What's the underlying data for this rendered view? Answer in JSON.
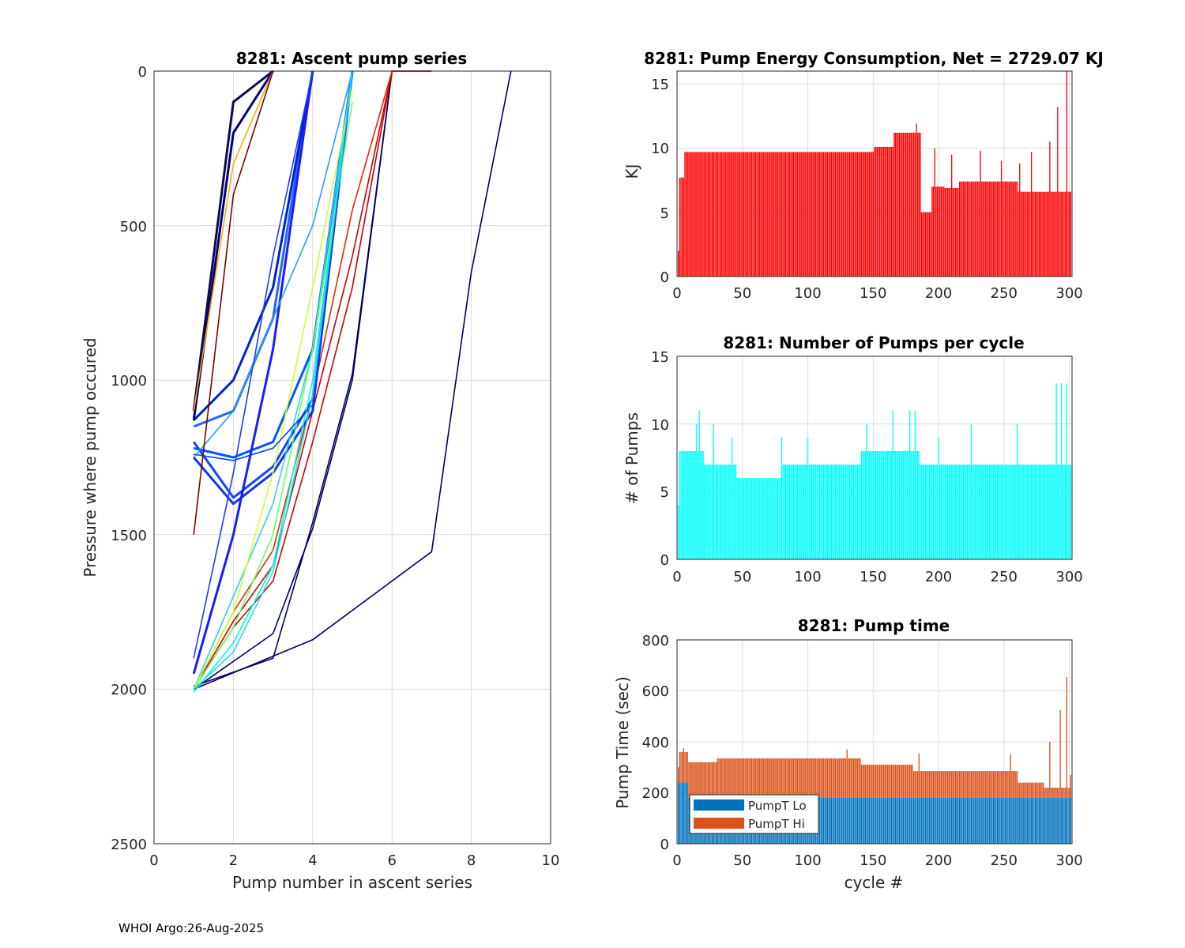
{
  "footer": "WHOI Argo:26-Aug-2025",
  "colors": {
    "energy_bar": "#ff0000",
    "pumps_bar": "#00ffff",
    "pumpt_lo": "#0072bd",
    "pumpt_hi": "#d95319",
    "grid": "#dcdcdc",
    "axis": "#262626"
  },
  "chart_data": [
    {
      "type": "line",
      "title": "8281: Ascent pump series",
      "xlabel": "Pump number in ascent series",
      "ylabel": "Pressure where pump occured",
      "xlim": [
        0,
        10
      ],
      "ylim": [
        2500,
        0
      ],
      "xticks": [
        "0",
        "2",
        "4",
        "6",
        "8",
        "10"
      ],
      "yticks": [
        "0",
        "500",
        "1000",
        "1500",
        "2000",
        "2500"
      ],
      "grid": true,
      "note": "~300 per-cycle ascent series colored by cycle number (jet colormap); representative series below",
      "series": [
        {
          "name": "profile-a",
          "color": "#000066",
          "x": [
            1,
            3,
            4,
            5,
            6
          ],
          "y": [
            2000,
            1820,
            1480,
            1000,
            0
          ]
        },
        {
          "name": "profile-b",
          "color": "#000066",
          "x": [
            1,
            4,
            7,
            8,
            9
          ],
          "y": [
            2000,
            1840,
            1555,
            650,
            0
          ]
        },
        {
          "name": "profile-c",
          "color": "#000066",
          "x": [
            1,
            3,
            4,
            5,
            6
          ],
          "y": [
            1990,
            1900,
            1460,
            980,
            0
          ]
        },
        {
          "name": "profile-d",
          "color": "#cc0000",
          "x": [
            1,
            2,
            3,
            4,
            5,
            6,
            7
          ],
          "y": [
            2000,
            1800,
            1650,
            1200,
            700,
            0,
            0
          ]
        },
        {
          "name": "profile-e",
          "color": "#cc0000",
          "x": [
            1,
            2,
            3,
            4,
            5,
            6,
            7
          ],
          "y": [
            2000,
            1780,
            1600,
            1100,
            600,
            0,
            0
          ]
        },
        {
          "name": "profile-f",
          "color": "#ee2200",
          "x": [
            1,
            2,
            3,
            4,
            5,
            6
          ],
          "y": [
            2000,
            1750,
            1550,
            1050,
            450,
            0
          ]
        },
        {
          "name": "profile-g",
          "color": "#1133ee",
          "x": [
            1,
            2,
            3,
            4,
            5
          ],
          "y": [
            1250,
            1400,
            1300,
            1100,
            0
          ]
        },
        {
          "name": "profile-h",
          "color": "#1144ff",
          "x": [
            1,
            2,
            3,
            4,
            5
          ],
          "y": [
            1200,
            1380,
            1280,
            1060,
            0
          ]
        },
        {
          "name": "profile-i",
          "color": "#0055ff",
          "x": [
            1,
            2,
            3,
            4,
            5
          ],
          "y": [
            1220,
            1250,
            1200,
            900,
            0
          ]
        },
        {
          "name": "profile-j",
          "color": "#2266ff",
          "x": [
            1,
            2,
            3,
            4
          ],
          "y": [
            1150,
            1100,
            800,
            0
          ]
        },
        {
          "name": "profile-k",
          "color": "#0022cc",
          "x": [
            1,
            2,
            3,
            4
          ],
          "y": [
            1130,
            1000,
            700,
            0
          ]
        },
        {
          "name": "profile-l",
          "color": "#1a1aff",
          "x": [
            1,
            2,
            3,
            4
          ],
          "y": [
            1950,
            1500,
            900,
            0
          ]
        },
        {
          "name": "profile-m",
          "color": "#000080",
          "x": [
            1,
            2,
            3
          ],
          "y": [
            1130,
            200,
            0
          ]
        },
        {
          "name": "profile-n",
          "color": "#0a0a50",
          "x": [
            1,
            2,
            3
          ],
          "y": [
            1100,
            100,
            0
          ]
        },
        {
          "name": "profile-o",
          "color": "#2a9df4",
          "x": [
            1,
            2,
            3,
            4,
            5
          ],
          "y": [
            1250,
            1100,
            800,
            500,
            0
          ]
        },
        {
          "name": "profile-p",
          "color": "#33ccff",
          "x": [
            1,
            2,
            3,
            4,
            5
          ],
          "y": [
            2000,
            1700,
            1400,
            900,
            0
          ]
        },
        {
          "name": "profile-q",
          "color": "#00ffcc",
          "x": [
            1,
            2,
            3,
            4,
            5
          ],
          "y": [
            2010,
            1850,
            1600,
            1000,
            0
          ]
        },
        {
          "name": "profile-r",
          "color": "#66ff66",
          "x": [
            1,
            2,
            3,
            4,
            5
          ],
          "y": [
            2000,
            1800,
            1500,
            900,
            100
          ]
        },
        {
          "name": "profile-s",
          "color": "#ccff33",
          "x": [
            1,
            2,
            3,
            4,
            5
          ],
          "y": [
            2000,
            1750,
            1300,
            700,
            50
          ]
        },
        {
          "name": "profile-t",
          "color": "#ffaa00",
          "x": [
            1,
            2,
            3
          ],
          "y": [
            1100,
            300,
            0
          ]
        },
        {
          "name": "profile-u",
          "color": "#800000",
          "x": [
            1,
            2,
            3
          ],
          "y": [
            1500,
            400,
            0
          ]
        },
        {
          "name": "profile-v",
          "color": "#1a3cff",
          "x": [
            1,
            2,
            3,
            4
          ],
          "y": [
            1900,
            1300,
            600,
            0
          ]
        },
        {
          "name": "profile-w",
          "color": "#0040ff",
          "x": [
            1,
            2,
            3,
            4,
            5
          ],
          "y": [
            1240,
            1260,
            1220,
            1080,
            0
          ]
        },
        {
          "name": "profile-x",
          "color": "#22ddee",
          "x": [
            1,
            2,
            3,
            4,
            5
          ],
          "y": [
            2000,
            1880,
            1620,
            1050,
            0
          ]
        }
      ]
    },
    {
      "type": "bar",
      "title": "8281: Pump Energy Consumption,  Net = 2729.07 KJ",
      "xlabel": "",
      "ylabel": "KJ",
      "xlim": [
        0,
        302
      ],
      "ylim": [
        0,
        16
      ],
      "xticks": [
        "0",
        "50",
        "100",
        "150",
        "200",
        "250",
        "300"
      ],
      "yticks": [
        "0",
        "5",
        "10",
        "15"
      ],
      "grid": true,
      "net_kj": 2729.07,
      "segments": [
        {
          "from": 1,
          "to": 1,
          "value": 2.0
        },
        {
          "from": 2,
          "to": 5,
          "value": 7.7
        },
        {
          "from": 6,
          "to": 150,
          "value": 9.7
        },
        {
          "from": 151,
          "to": 165,
          "value": 10.1
        },
        {
          "from": 166,
          "to": 186,
          "value": 11.2
        },
        {
          "from": 187,
          "to": 194,
          "value": 5.0
        },
        {
          "from": 195,
          "to": 204,
          "value": 7.0
        },
        {
          "from": 205,
          "to": 215,
          "value": 6.9
        },
        {
          "from": 216,
          "to": 260,
          "value": 7.4
        },
        {
          "from": 261,
          "to": 290,
          "value": 6.6
        },
        {
          "from": 291,
          "to": 302,
          "value": 6.6
        }
      ],
      "spikes": [
        {
          "cycle": 183,
          "value": 11.9
        },
        {
          "cycle": 197,
          "value": 10.0
        },
        {
          "cycle": 210,
          "value": 9.5
        },
        {
          "cycle": 232,
          "value": 9.8
        },
        {
          "cycle": 248,
          "value": 9.0
        },
        {
          "cycle": 262,
          "value": 8.8
        },
        {
          "cycle": 271,
          "value": 9.7
        },
        {
          "cycle": 285,
          "value": 10.5
        },
        {
          "cycle": 291,
          "value": 13.2
        },
        {
          "cycle": 298,
          "value": 16.0
        }
      ]
    },
    {
      "type": "bar",
      "title": "8281: Number of Pumps per cycle",
      "xlabel": "",
      "ylabel": "# of Pumps",
      "xlim": [
        0,
        302
      ],
      "ylim": [
        0,
        15
      ],
      "xticks": [
        "0",
        "50",
        "100",
        "150",
        "200",
        "250",
        "300"
      ],
      "yticks": [
        "0",
        "5",
        "10",
        "15"
      ],
      "grid": true,
      "segments": [
        {
          "from": 1,
          "to": 1,
          "value": 4
        },
        {
          "from": 2,
          "to": 20,
          "value": 8
        },
        {
          "from": 21,
          "to": 45,
          "value": 7
        },
        {
          "from": 46,
          "to": 80,
          "value": 6
        },
        {
          "from": 81,
          "to": 140,
          "value": 7
        },
        {
          "from": 141,
          "to": 185,
          "value": 8
        },
        {
          "from": 186,
          "to": 230,
          "value": 7
        },
        {
          "from": 231,
          "to": 302,
          "value": 7
        }
      ],
      "spikes": [
        {
          "cycle": 15,
          "value": 10
        },
        {
          "cycle": 17,
          "value": 11
        },
        {
          "cycle": 28,
          "value": 10
        },
        {
          "cycle": 42,
          "value": 9
        },
        {
          "cycle": 80,
          "value": 9
        },
        {
          "cycle": 100,
          "value": 9
        },
        {
          "cycle": 145,
          "value": 10
        },
        {
          "cycle": 165,
          "value": 11
        },
        {
          "cycle": 178,
          "value": 11
        },
        {
          "cycle": 182,
          "value": 11
        },
        {
          "cycle": 200,
          "value": 9
        },
        {
          "cycle": 225,
          "value": 10
        },
        {
          "cycle": 260,
          "value": 10
        },
        {
          "cycle": 290,
          "value": 13
        },
        {
          "cycle": 294,
          "value": 13
        },
        {
          "cycle": 298,
          "value": 13
        }
      ]
    },
    {
      "type": "bar",
      "title": "8281: Pump time",
      "xlabel": "cycle #",
      "ylabel": "Pump Time (sec)",
      "xlim": [
        0,
        302
      ],
      "ylim": [
        0,
        800
      ],
      "xticks": [
        "0",
        "50",
        "100",
        "150",
        "200",
        "250",
        "300"
      ],
      "yticks": [
        "0",
        "200",
        "400",
        "600",
        "800"
      ],
      "grid": true,
      "legend": [
        "PumpT Lo",
        "PumpT Hi"
      ],
      "legend_position": "bottom-left",
      "lo_segments": [
        {
          "from": 1,
          "to": 8,
          "value": 240
        },
        {
          "from": 9,
          "to": 302,
          "value": 180
        }
      ],
      "total_segments": [
        {
          "from": 1,
          "to": 1,
          "value": 300
        },
        {
          "from": 2,
          "to": 8,
          "value": 360
        },
        {
          "from": 9,
          "to": 30,
          "value": 320
        },
        {
          "from": 31,
          "to": 140,
          "value": 335
        },
        {
          "from": 141,
          "to": 180,
          "value": 310
        },
        {
          "from": 181,
          "to": 260,
          "value": 285
        },
        {
          "from": 261,
          "to": 280,
          "value": 240
        },
        {
          "from": 281,
          "to": 302,
          "value": 220
        }
      ],
      "spikes": [
        {
          "cycle": 5,
          "value": 375
        },
        {
          "cycle": 130,
          "value": 370
        },
        {
          "cycle": 185,
          "value": 355
        },
        {
          "cycle": 255,
          "value": 350
        },
        {
          "cycle": 285,
          "value": 400
        },
        {
          "cycle": 293,
          "value": 525
        },
        {
          "cycle": 298,
          "value": 655
        },
        {
          "cycle": 301,
          "value": 270
        }
      ]
    }
  ]
}
